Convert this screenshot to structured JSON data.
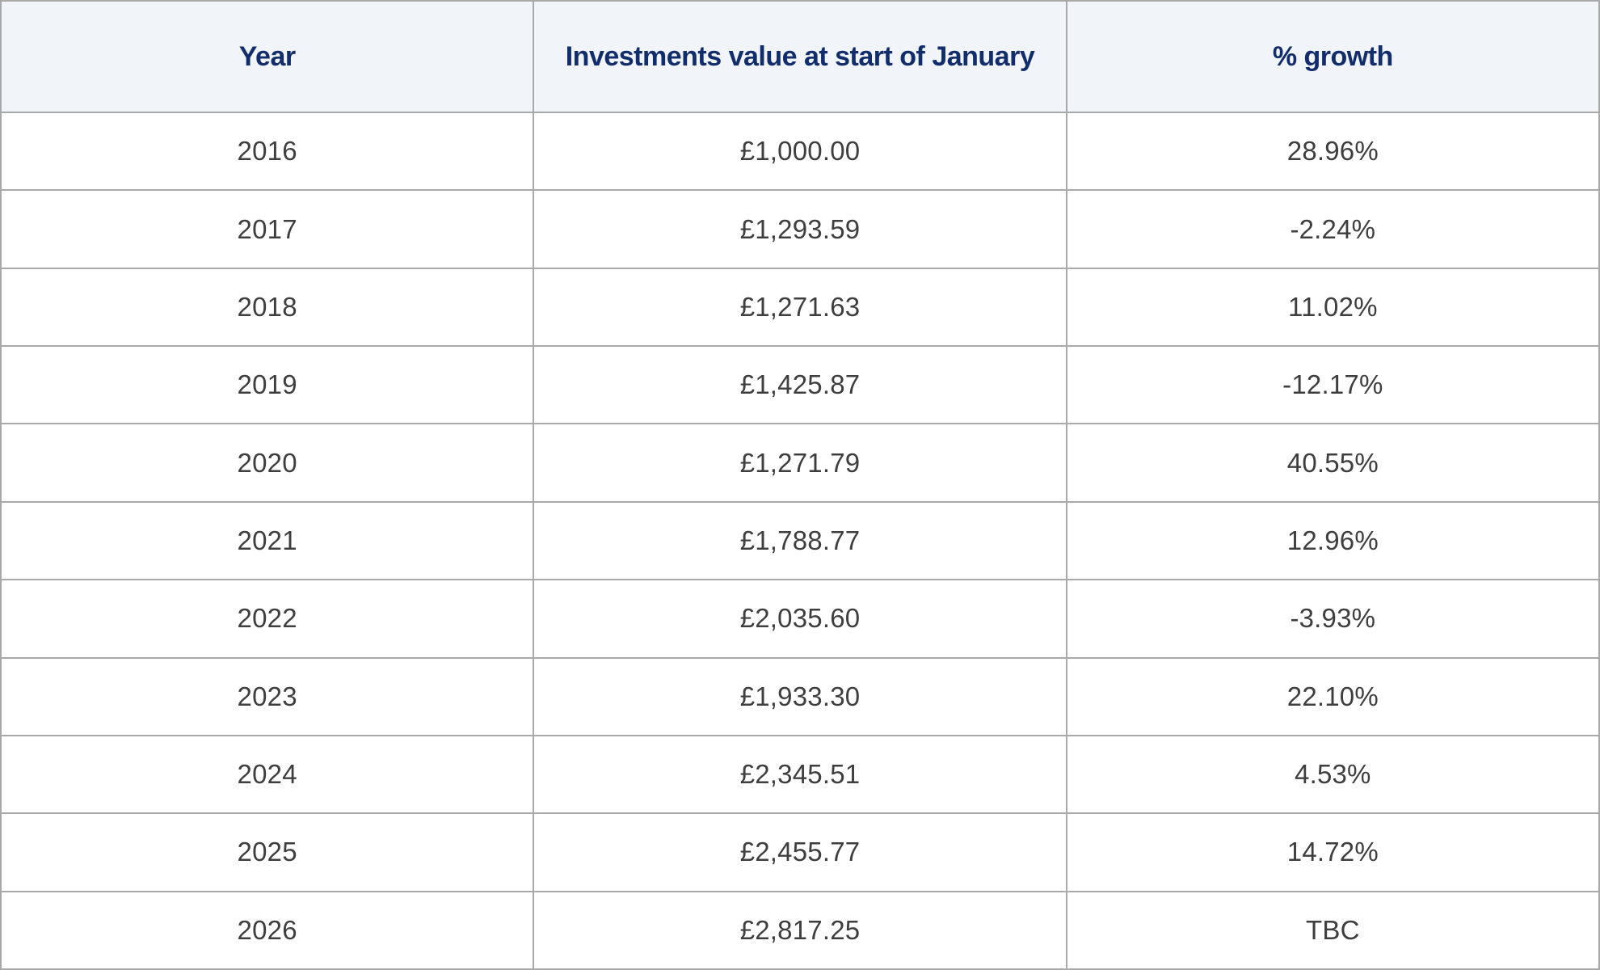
{
  "colors": {
    "header_background": "#f1f4f9",
    "header_text": "#112d6b",
    "body_text": "#3e3e3e",
    "border": "#a9a9a9"
  },
  "table": {
    "columns": [
      "Year",
      "Investments value at start of January",
      "% growth"
    ],
    "rows": [
      {
        "year": "2016",
        "value": "£1,000.00",
        "growth": "28.96%"
      },
      {
        "year": "2017",
        "value": "£1,293.59",
        "growth": "-2.24%"
      },
      {
        "year": "2018",
        "value": "£1,271.63",
        "growth": "11.02%"
      },
      {
        "year": "2019",
        "value": "£1,425.87",
        "growth": "-12.17%"
      },
      {
        "year": "2020",
        "value": "£1,271.79",
        "growth": "40.55%"
      },
      {
        "year": "2021",
        "value": "£1,788.77",
        "growth": "12.96%"
      },
      {
        "year": "2022",
        "value": "£2,035.60",
        "growth": "-3.93%"
      },
      {
        "year": "2023",
        "value": "£1,933.30",
        "growth": "22.10%"
      },
      {
        "year": "2024",
        "value": "£2,345.51",
        "growth": "4.53%"
      },
      {
        "year": "2025",
        "value": "£2,455.77",
        "growth": "14.72%"
      },
      {
        "year": "2026",
        "value": "£2,817.25",
        "growth": "TBC"
      }
    ]
  },
  "chart_data": {
    "type": "table",
    "title": "",
    "columns": [
      "Year",
      "Investments value at start of January",
      "% growth"
    ],
    "rows": [
      [
        2016,
        "£1,000.00",
        "28.96%"
      ],
      [
        2017,
        "£1,293.59",
        "-2.24%"
      ],
      [
        2018,
        "£1,271.63",
        "11.02%"
      ],
      [
        2019,
        "£1,425.87",
        "-12.17%"
      ],
      [
        2020,
        "£1,271.79",
        "40.55%"
      ],
      [
        2021,
        "£1,788.77",
        "12.96%"
      ],
      [
        2022,
        "£2,035.60",
        "-3.93%"
      ],
      [
        2023,
        "£1,933.30",
        "22.10%"
      ],
      [
        2024,
        "£2,345.51",
        "4.53%"
      ],
      [
        2025,
        "£2,455.77",
        "14.72%"
      ],
      [
        2026,
        "£2,817.25",
        "TBC"
      ]
    ],
    "series": [
      {
        "name": "Investments value at start of January (GBP)",
        "x": [
          2016,
          2017,
          2018,
          2019,
          2020,
          2021,
          2022,
          2023,
          2024,
          2025,
          2026
        ],
        "values": [
          1000.0,
          1293.59,
          1271.63,
          1425.87,
          1271.79,
          1788.77,
          2035.6,
          1933.3,
          2345.51,
          2455.77,
          2817.25
        ]
      },
      {
        "name": "% growth",
        "x": [
          2016,
          2017,
          2018,
          2019,
          2020,
          2021,
          2022,
          2023,
          2024,
          2025
        ],
        "values": [
          28.96,
          -2.24,
          11.02,
          -12.17,
          40.55,
          12.96,
          -3.93,
          22.1,
          4.53,
          14.72
        ]
      }
    ]
  }
}
